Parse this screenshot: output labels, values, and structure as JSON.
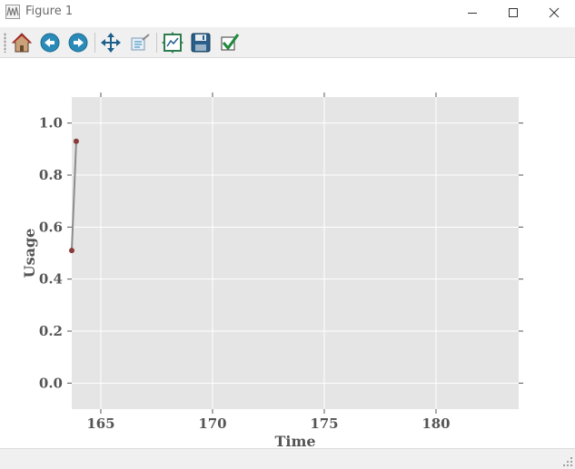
{
  "window": {
    "title": "Figure 1"
  },
  "toolbar": {
    "buttons": [
      {
        "name": "home-button",
        "icon": "home-icon"
      },
      {
        "name": "back-button",
        "icon": "back-arrow-icon"
      },
      {
        "name": "forward-button",
        "icon": "forward-arrow-icon"
      },
      {
        "name": "pan-button",
        "icon": "move-arrows-icon"
      },
      {
        "name": "zoom-button",
        "icon": "zoom-rect-icon"
      },
      {
        "name": "subplots-button",
        "icon": "subplots-icon"
      },
      {
        "name": "save-button",
        "icon": "floppy-disk-icon"
      },
      {
        "name": "edit-axis-button",
        "icon": "checkmark-icon"
      }
    ]
  },
  "colors": {
    "plot_background": "#e5e5e5",
    "grid": "#ffffff",
    "line": "#8c8c8c",
    "marker": "#8b3a3a",
    "text": "#555555"
  },
  "chart_data": {
    "type": "line",
    "xlabel": "Time",
    "ylabel": "Usage",
    "xlim": [
      163.7,
      183.7
    ],
    "ylim": [
      -0.1,
      1.1
    ],
    "xticks": [
      165,
      170,
      175,
      180
    ],
    "xtick_labels": [
      "165",
      "170",
      "175",
      "180"
    ],
    "yticks": [
      0.0,
      0.2,
      0.4,
      0.6,
      0.8,
      1.0
    ],
    "ytick_labels": [
      "0.0",
      "0.2",
      "0.4",
      "0.6",
      "0.8",
      "1.0"
    ],
    "grid": true,
    "series": [
      {
        "x": [
          163.7,
          163.9
        ],
        "y": [
          0.51,
          0.93
        ]
      }
    ]
  }
}
